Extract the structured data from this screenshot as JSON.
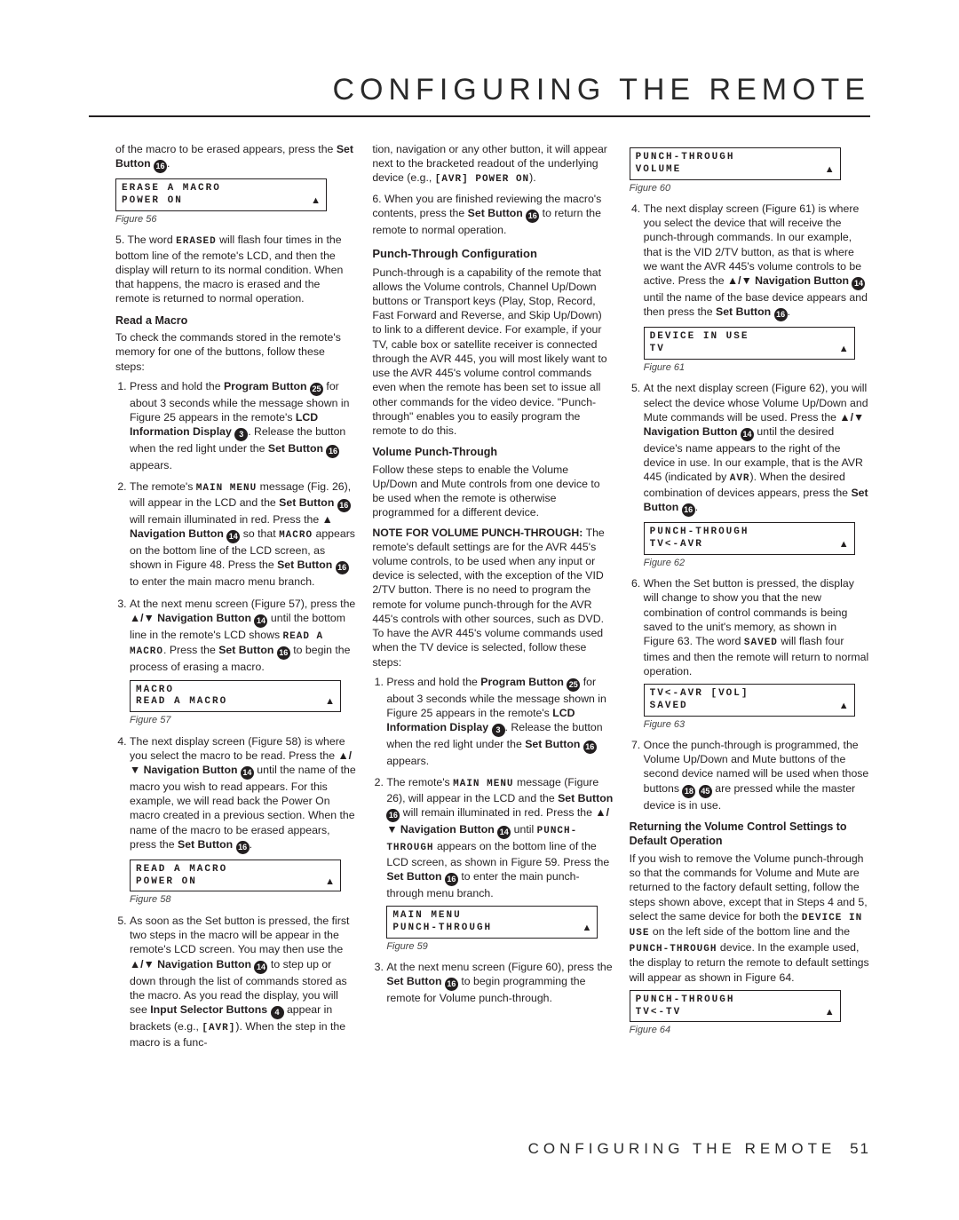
{
  "page": {
    "title": "CONFIGURING THE REMOTE",
    "footer_label": "CONFIGURING THE REMOTE",
    "page_number": "51"
  },
  "lcd": {
    "fig56_l1": "ERASE A MACRO",
    "fig56_l2": "POWER ON",
    "fig57_l1": "MACRO",
    "fig57_l2": "READ A MACRO",
    "fig58_l1": "READ A MACRO",
    "fig58_l2": "POWER ON",
    "fig59_l1": "MAIN MENU",
    "fig59_l2": "PUNCH-THROUGH",
    "fig60_l1": "PUNCH-THROUGH",
    "fig60_l2": "VOLUME",
    "fig61_l1": "DEVICE IN USE",
    "fig61_l2": "TV",
    "fig62_l1": "PUNCH-THROUGH",
    "fig62_l2": "TV<-AVR",
    "fig63_l1": "TV<-AVR [VOL]",
    "fig63_l2": "SAVED",
    "fig64_l1": "PUNCH-THROUGH",
    "fig64_l2": "TV<-TV"
  },
  "figcap": {
    "f56": "Figure 56",
    "f57": "Figure 57",
    "f58": "Figure 58",
    "f59": "Figure 59",
    "f60": "Figure 60",
    "f61": "Figure 61",
    "f62": "Figure 62",
    "f63": "Figure 63",
    "f64": "Figure 64"
  },
  "icon_num": {
    "n3": "3",
    "n4": "4",
    "n14": "14",
    "n16": "16",
    "n18": "18",
    "n25": "25",
    "n45": "45"
  },
  "col1": {
    "lead_a": "of the macro to be erased appears, press the ",
    "lead_b": "Set Button ",
    "lead_c": ".",
    "p5_a": "5. The word ",
    "p5_b": "ERASED",
    "p5_c": " will flash four times in the bottom line of the remote's LCD, and then the display will return to its normal condition. When that happens, the macro is erased and the remote is returned to normal operation.",
    "read_h": "Read a Macro",
    "read_intro": "To check the commands stored in the remote's memory for one of the buttons, follow these steps:",
    "s1_a": "Press and hold the ",
    "s1_b": "Program Button ",
    "s1_c": " for about 3 seconds while the message shown in Figure 25 appears in the remote's ",
    "s1_d": "LCD Information Display ",
    "s1_e": ". Release the button when the red light under the ",
    "s1_f": "Set Button ",
    "s1_g": " appears.",
    "s2_a": "The remote's ",
    "s2_b": "MAIN MENU",
    "s2_c": " message (Fig. 26), will appear in the LCD and the ",
    "s2_d": "Set Button ",
    "s2_e": " will remain illuminated in red. Press the ",
    "s2_f": "▲ Navigation Button ",
    "s2_g": " so that ",
    "s2_h": "MACRO",
    "s2_i": " appears on the bottom line of the LCD screen, as shown in Figure 48. Press the ",
    "s2_j": "Set Button ",
    "s2_k": " to enter the main macro menu branch.",
    "s3_a": "At the next menu screen (Figure 57), press the ",
    "s3_b": "▲/▼ Navigation Button ",
    "s3_c": " until the bottom line in the remote's LCD shows ",
    "s3_d": "READ A MACRO",
    "s3_e": ". Press the ",
    "s3_f": "Set Button ",
    "s3_g": " to begin the process of erasing a macro.",
    "s4_a": "The next display screen (Figure 58) is where you select the macro to be read. Press the ",
    "s4_b": "▲/▼ Navigation Button ",
    "s4_c": " until the name of the macro you wish to read appears. For this example, we will read back the Power On macro created in a previous section. When the name of the macro to be erased appears, press the ",
    "s4_d": "Set Button ",
    "s4_e": ".",
    "s5_a": "As soon as the Set button is pressed, the first two steps in the macro will be appear in the remote's LCD screen. You may then use the ",
    "s5_b": "▲/▼ Navigation Button ",
    "s5_c": " to step up or down through the list of commands stored as the macro. As you read the display, you will see ",
    "s5_d": "Input Selector Buttons ",
    "s5_e": " appear in brackets (e.g., ",
    "s5_f": "[AVR]",
    "s5_g": "). When the step in the macro is a func-"
  },
  "col2": {
    "lead_a": "tion, navigation or any other button, it will appear next to the bracketed readout of the underlying device (e.g., ",
    "lead_b": "[AVR] POWER ON",
    "lead_c": ").",
    "s6_a": "6. When you are finished reviewing the macro's contents, press the ",
    "s6_b": "Set Button ",
    "s6_c": " to return the remote to normal operation.",
    "pt_h": "Punch-Through Configuration",
    "pt_body": "Punch-through is a capability of the remote that allows the Volume controls, Channel Up/Down buttons or Transport keys (Play, Stop, Record, Fast Forward and Reverse, and Skip Up/Down) to link to a different device. For example, if your TV, cable box or satellite receiver is connected through the AVR 445, you will most likely want to use the AVR 445's volume control commands even when the remote has been set to issue all other commands for the video device. \"Punch-through\" enables you to easily program the remote to do this.",
    "vpt_h": "Volume Punch-Through",
    "vpt_body": "Follow these steps to enable the Volume Up/Down and Mute controls from one device to be used when the remote is otherwise programmed for a different device.",
    "note_a": "NOTE FOR VOLUME PUNCH-THROUGH:",
    "note_b": " The remote's default settings are for the AVR 445's volume controls, to be used when any input or device is selected, with the exception of the VID 2/TV button. There is no need to program the remote for volume punch-through for the AVR 445's controls with other sources, such as DVD. To have the AVR 445's volume commands used when the TV device is selected, follow these steps:",
    "s1_a": "Press and hold the ",
    "s1_b": "Program Button ",
    "s1_c": " for about 3 seconds while the message shown in Figure 25 appears in the remote's ",
    "s1_d": "LCD Information Display ",
    "s1_e": ". Release the button when the red light under the ",
    "s1_f": "Set Button ",
    "s1_g": " appears.",
    "s2_a": "The remote's ",
    "s2_b": "MAIN MENU",
    "s2_c": " message (Figure 26), will appear in the LCD and the ",
    "s2_d": "Set Button ",
    "s2_e": " will remain illuminated in red. Press the ",
    "s2_f": "▲/▼ Navigation Button ",
    "s2_g": " until ",
    "s2_h": "PUNCH-THROUGH",
    "s2_i": " appears on the bottom line of the LCD screen, as shown in Figure 59. Press the ",
    "s2_j": "Set Button ",
    "s2_k": " to enter the main punch-through menu branch.",
    "s3_a": "At the next menu screen (Figure 60), press the ",
    "s3_b": "Set Button ",
    "s3_c": " to begin programming the remote for Volume punch-through."
  },
  "col3": {
    "s4_a": "The next display screen (Figure 61) is where you select the device that will receive the punch-through commands. In our example, that is the VID 2/TV button, as that is where we want the AVR 445's volume controls to be active. Press the ",
    "s4_b": "▲/▼ Navigation Button ",
    "s4_c": " until the name of the base device appears and then press the ",
    "s4_d": "Set Button ",
    "s4_e": ".",
    "s5_a": "At the next display screen (Figure 62), you will select the device whose Volume Up/Down and Mute commands will be used. Press the ",
    "s5_b": "▲/▼ Navigation Button ",
    "s5_c": " until the desired device's name appears to the right of the device in use. In our example, that is the AVR 445 (indicated by ",
    "s5_d": "AVR",
    "s5_e": "). When the desired combination of devices appears, press the ",
    "s5_f": "Set Button ",
    "s5_g": ".",
    "s6_a": "When the Set button is pressed, the display will change to show you that the new combination of control commands is being saved to the unit's memory, as shown in Figure 63. The word ",
    "s6_b": "SAVED",
    "s6_c": " will flash four times and then the remote will return to normal operation.",
    "s7_a": "Once the punch-through is programmed, the Volume Up/Down and Mute buttons of the second device named will be used when those buttons ",
    "s7_b": " are pressed while the master device is in use.",
    "ret_h": "Returning the Volume Control Settings to Default Operation",
    "ret_a": "If you wish to remove the Volume punch-through so that the commands for Volume and Mute are returned to the factory default setting, follow the steps shown above, except that in Steps 4 and 5, select the same device for both the ",
    "ret_b": "DEVICE IN USE",
    "ret_c": " on the left side of the bottom line and the ",
    "ret_d": "PUNCH-THROUGH",
    "ret_e": " device. In the example used, the display to return the remote to default settings will appear as shown in Figure 64."
  }
}
